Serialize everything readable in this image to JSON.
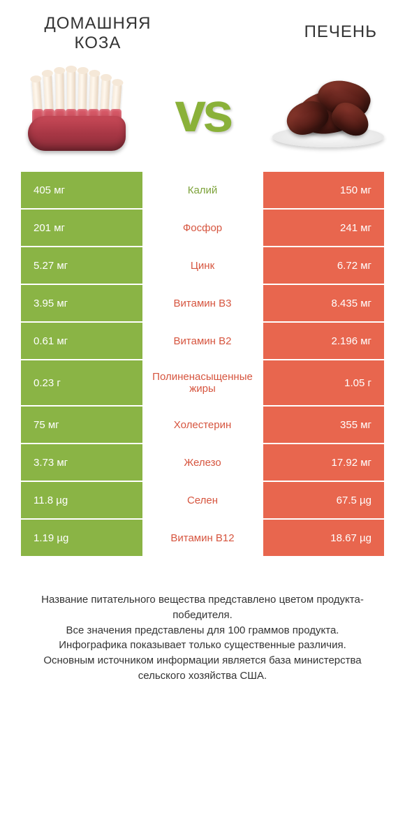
{
  "colors": {
    "green": "#8ab445",
    "orange": "#e8664e",
    "text_green": "#7da23a",
    "text_orange": "#d6553f",
    "white": "#ffffff"
  },
  "header": {
    "left_title": "ДОМАШНЯЯ КОЗА",
    "right_title": "ПЕЧЕНЬ",
    "vs": "vs"
  },
  "rows": [
    {
      "left": "405 мг",
      "mid": "Калий",
      "right": "150 мг",
      "winner": "left"
    },
    {
      "left": "201 мг",
      "mid": "Фосфор",
      "right": "241 мг",
      "winner": "right"
    },
    {
      "left": "5.27 мг",
      "mid": "Цинк",
      "right": "6.72 мг",
      "winner": "right"
    },
    {
      "left": "3.95 мг",
      "mid": "Витамин B3",
      "right": "8.435 мг",
      "winner": "right"
    },
    {
      "left": "0.61 мг",
      "mid": "Витамин B2",
      "right": "2.196 мг",
      "winner": "right"
    },
    {
      "left": "0.23 г",
      "mid": "Полиненасыщенные жиры",
      "right": "1.05 г",
      "winner": "right",
      "tall": true
    },
    {
      "left": "75 мг",
      "mid": "Холестерин",
      "right": "355 мг",
      "winner": "right"
    },
    {
      "left": "3.73 мг",
      "mid": "Железо",
      "right": "17.92 мг",
      "winner": "right"
    },
    {
      "left": "11.8 µg",
      "mid": "Селен",
      "right": "67.5 µg",
      "winner": "right"
    },
    {
      "left": "1.19 µg",
      "mid": "Витамин B12",
      "right": "18.67 µg",
      "winner": "right"
    }
  ],
  "footer": {
    "line1": "Название питательного вещества представлено цветом продукта-победителя.",
    "line2": "Все значения представлены для 100 граммов продукта.",
    "line3": "Инфографика показывает только существенные различия.",
    "line4": "Основным источником информации является база министерства сельского хозяйства США."
  }
}
